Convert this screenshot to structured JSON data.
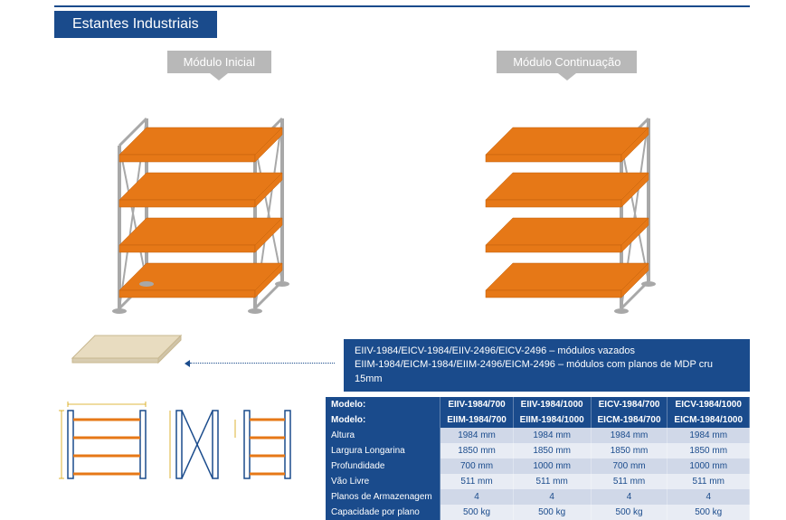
{
  "title": "Estantes Industriais",
  "modules": {
    "initial": "Módulo Inicial",
    "continuation": "Módulo Continuação"
  },
  "info": {
    "line1": "EIIV-1984/EICV-1984/EIIV-2496/EICV-2496 – módulos vazados",
    "line2": "EIIM-1984/EICM-1984/EIIM-2496/EICM-2496 – módulos com planos de MDP cru 15mm"
  },
  "table": {
    "header_row1": [
      "Modelo:",
      "EIIV-1984/700",
      "EIIV-1984/1000",
      "EICV-1984/700",
      "EICV-1984/1000"
    ],
    "header_row2": [
      "Modelo:",
      "EIIM-1984/700",
      "EIIM-1984/1000",
      "EICM-1984/700",
      "EICM-1984/1000"
    ],
    "rows": [
      [
        "Altura",
        "1984 mm",
        "1984 mm",
        "1984 mm",
        "1984 mm"
      ],
      [
        "Largura Longarina",
        "1850 mm",
        "1850 mm",
        "1850 mm",
        "1850 mm"
      ],
      [
        "Profundidade",
        "700 mm",
        "1000 mm",
        "700 mm",
        "1000 mm"
      ],
      [
        "Vão Livre",
        "511 mm",
        "511 mm",
        "511 mm",
        "511 mm"
      ],
      [
        "Planos de Armazenagem",
        "4",
        "4",
        "4",
        "4"
      ],
      [
        "Capacidade por plano",
        "500 kg",
        "500 kg",
        "500 kg",
        "500 kg"
      ]
    ]
  },
  "colors": {
    "primary": "#1a4b8c",
    "beam": "#e67817",
    "frame": "#a8a8a8",
    "board": "#e8dcc0",
    "label_bg": "#b8b8b8",
    "row_odd": "#d0d8e8",
    "row_even": "#e8ecf4"
  }
}
